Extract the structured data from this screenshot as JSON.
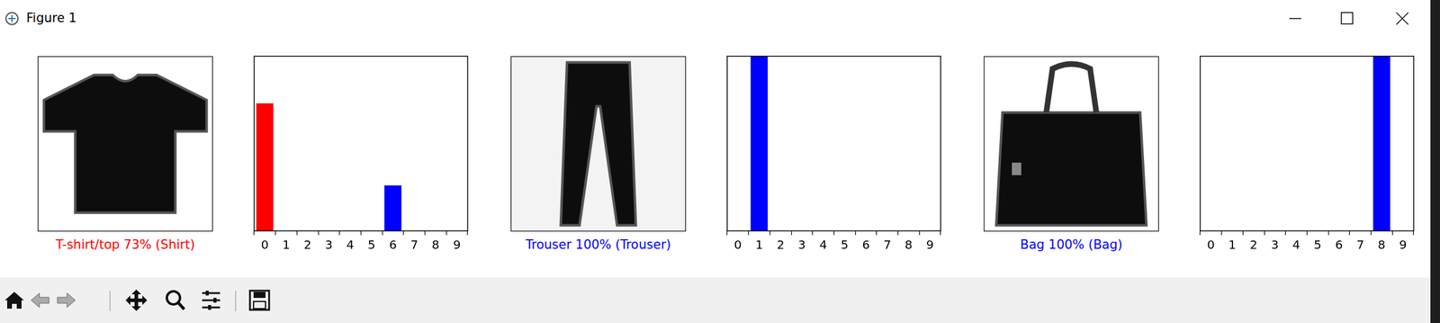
{
  "window": {
    "title": "Figure 1"
  },
  "images": [
    {
      "caption": "T-shirt/top 73% (Shirt)",
      "color": "#ff0000"
    },
    {
      "caption": "Trouser 100% (Trouser)",
      "color": "#0000ff"
    },
    {
      "caption": "Bag 100% (Bag)",
      "color": "#0000ff"
    }
  ],
  "chart_data": [
    {
      "type": "bar",
      "categories": [
        "0",
        "1",
        "2",
        "3",
        "4",
        "5",
        "6",
        "7",
        "8",
        "9"
      ],
      "values": [
        0.73,
        0,
        0,
        0,
        0,
        0,
        0.26,
        0,
        0,
        0
      ],
      "colors": [
        "#ff0000",
        "#777777",
        "#777777",
        "#777777",
        "#777777",
        "#777777",
        "#0000ff",
        "#777777",
        "#777777",
        "#777777"
      ],
      "ylim": [
        0,
        1
      ],
      "yticks": [],
      "tick_labels": "x",
      "grid": false
    },
    {
      "type": "bar",
      "categories": [
        "0",
        "1",
        "2",
        "3",
        "4",
        "5",
        "6",
        "7",
        "8",
        "9"
      ],
      "values": [
        0,
        1,
        0,
        0,
        0,
        0,
        0,
        0,
        0,
        0
      ],
      "colors": [
        "#777777",
        "#0000ff",
        "#777777",
        "#777777",
        "#777777",
        "#777777",
        "#777777",
        "#777777",
        "#777777",
        "#777777"
      ],
      "ylim": [
        0,
        1
      ],
      "yticks": [],
      "tick_labels": "x",
      "grid": false
    },
    {
      "type": "bar",
      "categories": [
        "0",
        "1",
        "2",
        "3",
        "4",
        "5",
        "6",
        "7",
        "8",
        "9"
      ],
      "values": [
        0,
        0,
        0,
        0,
        0,
        0,
        0,
        0,
        1,
        0
      ],
      "colors": [
        "#777777",
        "#777777",
        "#777777",
        "#777777",
        "#777777",
        "#777777",
        "#777777",
        "#777777",
        "#0000ff",
        "#777777"
      ],
      "ylim": [
        0,
        1
      ],
      "yticks": [],
      "tick_labels": "x",
      "grid": false
    }
  ]
}
